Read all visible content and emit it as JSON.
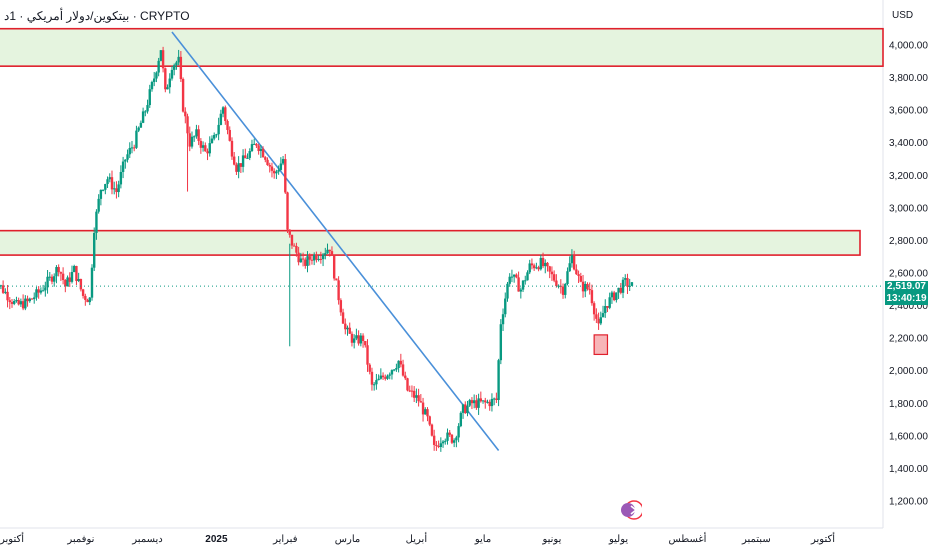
{
  "header": {
    "title": "بيتكوين/دولار أمريكي · 1د · CRYPTO"
  },
  "currency": "USD",
  "last_price": {
    "value": "2,519.07",
    "countdown": "13:40:19"
  },
  "colors": {
    "up": "#089981",
    "down": "#f23645",
    "zone_fill": "#e5f4df",
    "zone_border": "#e0202c",
    "trendline": "#4a90d9",
    "last_price_line": "#089981",
    "marker_fill": "#f7b5b8"
  },
  "chart_data": {
    "type": "candlestick",
    "ylim": [
      1100,
      4100
    ],
    "x_ticks": [
      {
        "label": "أكتوبر",
        "date": "2024-10-01"
      },
      {
        "label": "نوفمبر",
        "date": "2024-11-01"
      },
      {
        "label": "ديسمبر",
        "date": "2024-12-01"
      },
      {
        "label": "2025",
        "date": "2025-01-01"
      },
      {
        "label": "فبراير",
        "date": "2025-02-01"
      },
      {
        "label": "مارس",
        "date": "2025-03-01"
      },
      {
        "label": "أبريل",
        "date": "2025-04-01"
      },
      {
        "label": "مايو",
        "date": "2025-05-01"
      },
      {
        "label": "يونيو",
        "date": "2025-06-01"
      },
      {
        "label": "يوليو",
        "date": "2025-07-01"
      },
      {
        "label": "أغسطس",
        "date": "2025-08-01"
      },
      {
        "label": "سبتمبر",
        "date": "2025-09-01"
      },
      {
        "label": "أكتوبر",
        "date": "2025-10-01"
      }
    ],
    "y_ticks": [
      {
        "value": 1200,
        "label": "1,200.00"
      },
      {
        "value": 1400,
        "label": "1,400.00"
      },
      {
        "value": 1600,
        "label": "1,600.00"
      },
      {
        "value": 1800,
        "label": "1,800.00"
      },
      {
        "value": 2000,
        "label": "2,000.00"
      },
      {
        "value": 2200,
        "label": "2,200.00"
      },
      {
        "value": 2400,
        "label": "2,400.00"
      },
      {
        "value": 2600,
        "label": "2,600.00"
      },
      {
        "value": 2800,
        "label": "2,800.00"
      },
      {
        "value": 3000,
        "label": "3,000.00"
      },
      {
        "value": 3200,
        "label": "3,200.00"
      },
      {
        "value": 3400,
        "label": "3,400.00"
      },
      {
        "value": 3600,
        "label": "3,600.00"
      },
      {
        "value": 3800,
        "label": "3,800.00"
      },
      {
        "value": 4000,
        "label": "4,000.00"
      }
    ],
    "path": [
      [
        "2024-09-22",
        2580
      ],
      [
        "2024-09-28",
        2480
      ],
      [
        "2024-10-03",
        2400
      ],
      [
        "2024-10-08",
        2420
      ],
      [
        "2024-10-13",
        2480
      ],
      [
        "2024-10-18",
        2560
      ],
      [
        "2024-10-22",
        2640
      ],
      [
        "2024-10-25",
        2520
      ],
      [
        "2024-10-29",
        2620
      ],
      [
        "2024-11-02",
        2460
      ],
      [
        "2024-11-05",
        2440
      ],
      [
        "2024-11-07",
        2880
      ],
      [
        "2024-11-10",
        3120
      ],
      [
        "2024-11-13",
        3180
      ],
      [
        "2024-11-17",
        3100
      ],
      [
        "2024-11-21",
        3300
      ],
      [
        "2024-11-25",
        3400
      ],
      [
        "2024-11-30",
        3600
      ],
      [
        "2024-12-04",
        3800
      ],
      [
        "2024-12-07",
        3980
      ],
      [
        "2024-12-09",
        3700
      ],
      [
        "2024-12-12",
        3880
      ],
      [
        "2024-12-15",
        3900
      ],
      [
        "2024-12-17",
        3620
      ],
      [
        "2024-12-20",
        3400
      ],
      [
        "2024-12-23",
        3450
      ],
      [
        "2024-12-27",
        3340
      ],
      [
        "2024-12-31",
        3420
      ],
      [
        "2025-01-04",
        3620
      ],
      [
        "2025-01-07",
        3400
      ],
      [
        "2025-01-10",
        3250
      ],
      [
        "2025-01-14",
        3300
      ],
      [
        "2025-01-19",
        3400
      ],
      [
        "2025-01-23",
        3320
      ],
      [
        "2025-01-27",
        3200
      ],
      [
        "2025-01-31",
        3300
      ],
      [
        "2025-02-02",
        2850
      ],
      [
        "2025-02-05",
        2750
      ],
      [
        "2025-02-09",
        2650
      ],
      [
        "2025-02-13",
        2700
      ],
      [
        "2025-02-17",
        2720
      ],
      [
        "2025-02-21",
        2760
      ],
      [
        "2025-02-24",
        2520
      ],
      [
        "2025-02-28",
        2250
      ],
      [
        "2025-03-04",
        2180
      ],
      [
        "2025-03-08",
        2200
      ],
      [
        "2025-03-12",
        1900
      ],
      [
        "2025-03-16",
        1950
      ],
      [
        "2025-03-20",
        2000
      ],
      [
        "2025-03-24",
        2060
      ],
      [
        "2025-03-28",
        1880
      ],
      [
        "2025-04-02",
        1820
      ],
      [
        "2025-04-06",
        1700
      ],
      [
        "2025-04-09",
        1520
      ],
      [
        "2025-04-13",
        1600
      ],
      [
        "2025-04-18",
        1580
      ],
      [
        "2025-04-22",
        1760
      ],
      [
        "2025-04-26",
        1800
      ],
      [
        "2025-05-02",
        1800
      ],
      [
        "2025-05-07",
        1820
      ],
      [
        "2025-05-09",
        2300
      ],
      [
        "2025-05-13",
        2600
      ],
      [
        "2025-05-18",
        2500
      ],
      [
        "2025-05-22",
        2640
      ],
      [
        "2025-05-27",
        2660
      ],
      [
        "2025-06-01",
        2580
      ],
      [
        "2025-06-06",
        2500
      ],
      [
        "2025-06-10",
        2700
      ],
      [
        "2025-06-14",
        2520
      ],
      [
        "2025-06-18",
        2500
      ],
      [
        "2025-06-22",
        2260
      ],
      [
        "2025-06-25",
        2400
      ],
      [
        "2025-06-30",
        2480
      ],
      [
        "2025-07-04",
        2540
      ],
      [
        "2025-07-07",
        2519
      ]
    ],
    "annotations": {
      "upper_zone": [
        3870,
        4100
      ],
      "lower_zone": [
        2710,
        2860
      ],
      "trendline": [
        [
          "2024-12-12",
          4080
        ],
        [
          "2025-05-08",
          1510
        ]
      ],
      "marker_box": {
        "date_from": "2025-06-20",
        "date_to": "2025-06-26",
        "range": [
          2100,
          2220
        ]
      }
    },
    "legend_position": "none",
    "grid": false
  }
}
